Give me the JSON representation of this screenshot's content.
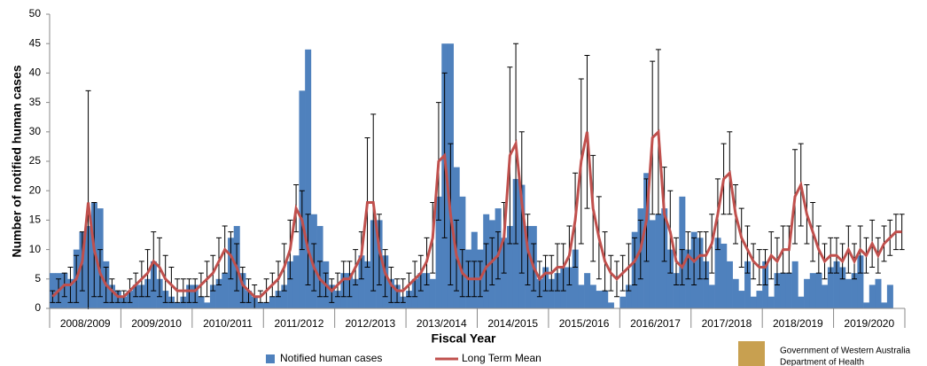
{
  "chart_data": {
    "type": "bar_line",
    "x_label": "Fiscal Year",
    "y_label": "Number of notified human cases",
    "categories": [
      null,
      null,
      null,
      null,
      null,
      "2008/2009",
      null,
      null,
      null,
      null,
      null,
      null,
      null,
      null,
      null,
      null,
      null,
      "2009/2010",
      null,
      null,
      null,
      null,
      null,
      null,
      null,
      null,
      null,
      null,
      null,
      "2010/2011",
      null,
      null,
      null,
      null,
      null,
      null,
      null,
      null,
      null,
      null,
      null,
      "2011/2012",
      null,
      null,
      null,
      null,
      null,
      null,
      null,
      null,
      null,
      null,
      null,
      "2012/2013",
      null,
      null,
      null,
      null,
      null,
      null,
      null,
      null,
      null,
      null,
      null,
      "2013/2014",
      null,
      null,
      null,
      null,
      null,
      null,
      null,
      null,
      null,
      null,
      null,
      "2014/2015",
      null,
      null,
      null,
      null,
      null,
      null,
      null,
      null,
      null,
      null,
      null,
      "2015/2016",
      null,
      null,
      null,
      null,
      null,
      null,
      null,
      null,
      null,
      null,
      null,
      "2016/2017",
      null,
      null,
      null,
      null,
      null,
      null,
      null,
      null,
      null,
      null,
      null,
      "2017/2018",
      null,
      null,
      null,
      null,
      null,
      null,
      null,
      null,
      null,
      null,
      null,
      "2018/2019",
      null,
      null,
      null,
      null,
      null,
      null,
      null,
      null,
      null,
      null,
      null,
      "2019/2020",
      null,
      null,
      null,
      null,
      null,
      null
    ],
    "series": [
      {
        "name": "Notified human cases",
        "color": "#4f81bd",
        "kind": "bar",
        "values": [
          6,
          6,
          6,
          5,
          10,
          13,
          14,
          18,
          17,
          8,
          4,
          3,
          2,
          3,
          4,
          4,
          5,
          8,
          5,
          3,
          2,
          1,
          2,
          4,
          4,
          2,
          1,
          4,
          5,
          6,
          12,
          14,
          6,
          3,
          2,
          1,
          1,
          2,
          3,
          4,
          8,
          9,
          37,
          44,
          16,
          14,
          8,
          4,
          3,
          6,
          6,
          5,
          9,
          8,
          15,
          15,
          9,
          5,
          4,
          2,
          3,
          5,
          6,
          6,
          5,
          19,
          45,
          45,
          24,
          19,
          10,
          13,
          10,
          16,
          15,
          17,
          12,
          14,
          22,
          21,
          14,
          14,
          5,
          7,
          5,
          6,
          7,
          7,
          10,
          4,
          6,
          4,
          3,
          3,
          1,
          0,
          2,
          4,
          13,
          17,
          23,
          15,
          16,
          17,
          10,
          6,
          19,
          10,
          13,
          12,
          8,
          4,
          12,
          11,
          8,
          5,
          3,
          8,
          2,
          3,
          8,
          2,
          6,
          6,
          6,
          8,
          2,
          5,
          6,
          6,
          4,
          7,
          8,
          7,
          5,
          6,
          9,
          1,
          4,
          5,
          1,
          4,
          0,
          0
        ]
      },
      {
        "name": "Long Term Mean",
        "color": "#c0504d",
        "kind": "line",
        "values": [
          2,
          3,
          4,
          4,
          5,
          8,
          18,
          10,
          6,
          4,
          3,
          2,
          2,
          3,
          4,
          5,
          6,
          8,
          7,
          5,
          4,
          3,
          3,
          3,
          3,
          4,
          5,
          6,
          8,
          10,
          9,
          7,
          4,
          3,
          2,
          2,
          3,
          4,
          5,
          7,
          10,
          17,
          15,
          10,
          7,
          5,
          4,
          3,
          4,
          5,
          5,
          7,
          9,
          18,
          18,
          10,
          6,
          4,
          3,
          3,
          4,
          5,
          6,
          8,
          12,
          25,
          26,
          16,
          9,
          6,
          5,
          5,
          5,
          7,
          8,
          9,
          12,
          26,
          28,
          18,
          10,
          7,
          5,
          6,
          6,
          7,
          7,
          9,
          15,
          25,
          30,
          17,
          12,
          8,
          6,
          5,
          6,
          7,
          8,
          10,
          15,
          29,
          30,
          16,
          13,
          8,
          7,
          9,
          8,
          9,
          9,
          11,
          16,
          22,
          23,
          16,
          12,
          10,
          8,
          7,
          7,
          9,
          8,
          10,
          10,
          19,
          21,
          16,
          13,
          10,
          8,
          9,
          9,
          8,
          10,
          8,
          10,
          9,
          11,
          9,
          11,
          12,
          13,
          13
        ],
        "errors": [
          1,
          2,
          2,
          3,
          4,
          5,
          19,
          8,
          4,
          3,
          2,
          1,
          1,
          2,
          2,
          3,
          4,
          5,
          5,
          4,
          3,
          2,
          2,
          2,
          2,
          2,
          3,
          3,
          4,
          4,
          4,
          4,
          3,
          2,
          2,
          1,
          2,
          2,
          3,
          4,
          5,
          4,
          5,
          6,
          4,
          3,
          2,
          2,
          2,
          3,
          3,
          3,
          4,
          11,
          15,
          6,
          4,
          3,
          2,
          2,
          2,
          3,
          3,
          4,
          6,
          10,
          14,
          12,
          6,
          4,
          3,
          3,
          3,
          4,
          4,
          4,
          6,
          15,
          17,
          12,
          6,
          4,
          3,
          3,
          3,
          4,
          4,
          5,
          8,
          14,
          13,
          9,
          7,
          5,
          3,
          3,
          3,
          4,
          4,
          5,
          7,
          13,
          14,
          8,
          7,
          4,
          3,
          4,
          4,
          4,
          4,
          5,
          6,
          6,
          7,
          5,
          5,
          4,
          3,
          3,
          3,
          4,
          4,
          4,
          4,
          8,
          7,
          5,
          5,
          4,
          3,
          3,
          3,
          3,
          4,
          3,
          4,
          3,
          4,
          3,
          3,
          3,
          3,
          3
        ]
      }
    ],
    "ylim": [
      0,
      50
    ],
    "yticks": [
      0,
      5,
      10,
      15,
      20,
      25,
      30,
      35,
      40,
      45,
      50
    ],
    "legend": "bottom"
  },
  "logo": {
    "line1": "Government of Western Australia",
    "line2": "Department of Health"
  }
}
